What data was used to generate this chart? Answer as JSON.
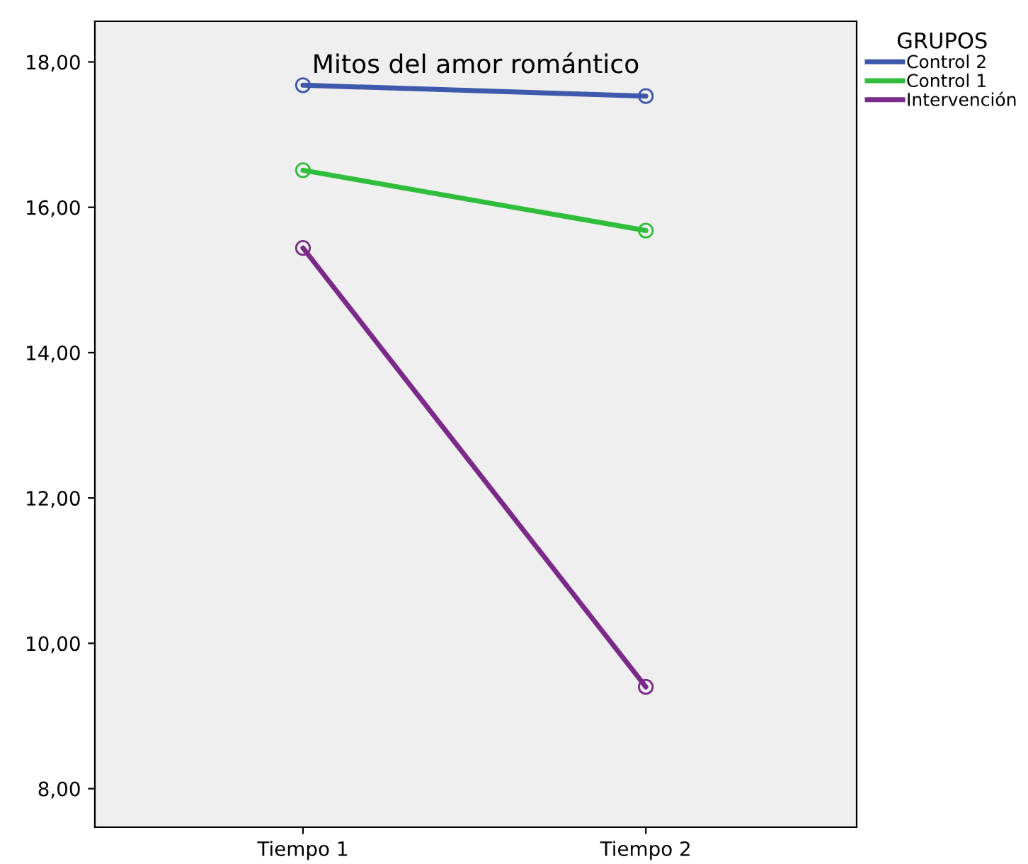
{
  "chart_data": {
    "type": "line",
    "title": "Mitos del amor romántico",
    "legend_title": "GRUPOS",
    "categories": [
      "Tiempo 1",
      "Tiempo 2"
    ],
    "series": [
      {
        "name": "Control 2",
        "color": "#3e58ac",
        "values": [
          17.68,
          17.53
        ]
      },
      {
        "name": "Control 1",
        "color": "#2fbd3b",
        "values": [
          16.51,
          15.68
        ]
      },
      {
        "name": "Intervención",
        "color": "#7b2a8a",
        "values": [
          15.44,
          9.4
        ]
      }
    ],
    "ylim": [
      7.47,
      18.56
    ],
    "yticks": [
      {
        "value": 8,
        "label": "8,00"
      },
      {
        "value": 10,
        "label": "10,00"
      },
      {
        "value": 12,
        "label": "12,00"
      },
      {
        "value": 14,
        "label": "14,00"
      },
      {
        "value": 16,
        "label": "16,00"
      },
      {
        "value": 18,
        "label": "18,00"
      }
    ],
    "grid": false,
    "legend": "top right",
    "marker": "circle",
    "line_style": "solid"
  }
}
